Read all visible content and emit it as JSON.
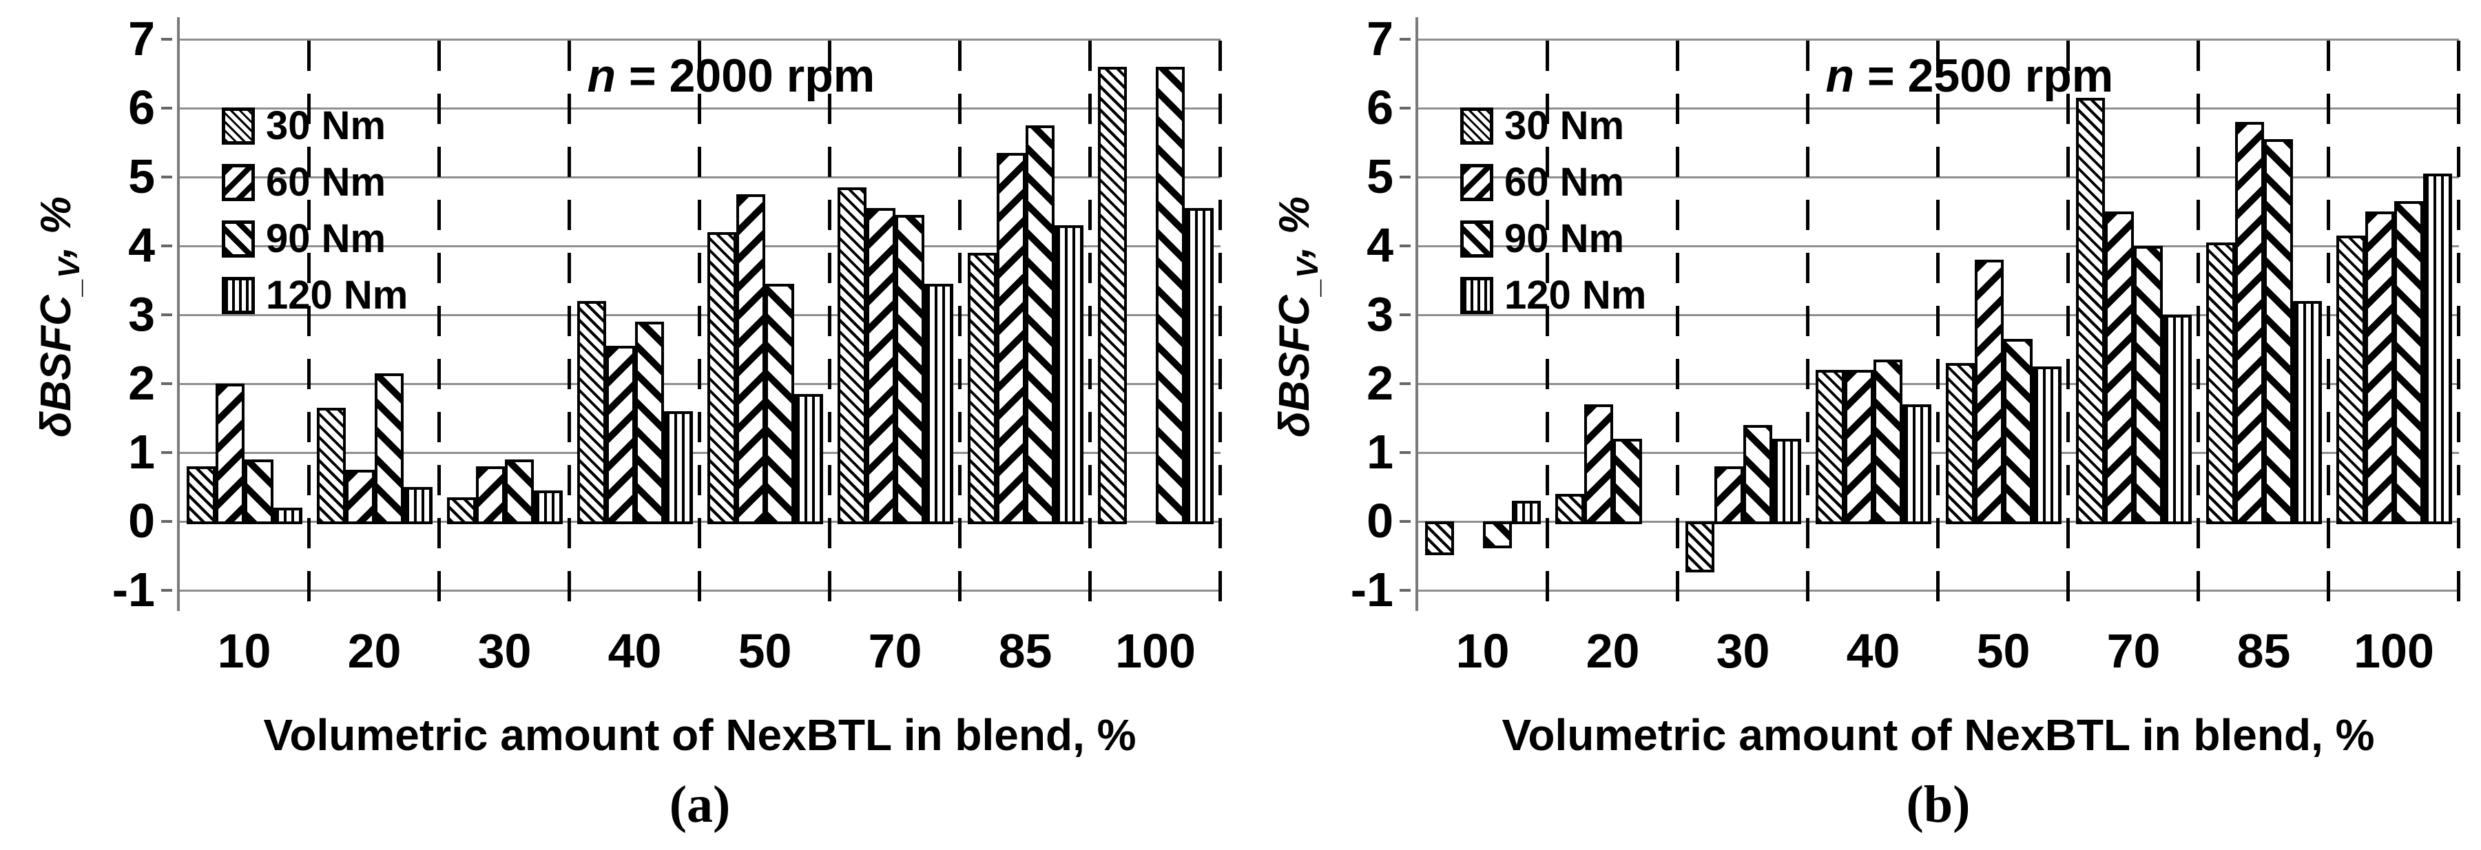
{
  "axes": {
    "x_label": "Volumetric amount of NexBTL in blend, %",
    "y_label_prefix": "δBSFC",
    "y_label_sub": "_V",
    "y_label_suffix": ", %",
    "y_ticks": [
      7,
      6,
      5,
      4,
      3,
      2,
      1,
      0,
      -1
    ],
    "ylim": [
      -1,
      7
    ]
  },
  "colors": {
    "foreground": "#000000",
    "background": "#ffffff",
    "gridline": "#8f8f8f"
  },
  "chart_data": [
    {
      "type": "bar",
      "caption": "(a)",
      "title": "n = 2000 rpm",
      "xlabel": "Volumetric amount of NexBTL in blend, %",
      "ylabel": "δBSFC_V, %",
      "ylim": [
        -1,
        7
      ],
      "grid": "horizontal-solid-and-vertical-dashed",
      "legend_position": "top-left-inside",
      "categories": [
        10,
        20,
        30,
        40,
        50,
        70,
        85,
        100
      ],
      "series": [
        {
          "name": "30 Nm",
          "pattern": "fine-diagonal-hatch",
          "values": [
            0.8,
            1.65,
            0.35,
            3.2,
            4.2,
            4.85,
            3.9,
            6.6
          ]
        },
        {
          "name": "60 Nm",
          "pattern": "wide-diagonal-up",
          "values": [
            2.0,
            0.75,
            0.8,
            2.55,
            4.75,
            4.55,
            5.35,
            null
          ]
        },
        {
          "name": "90 Nm",
          "pattern": "wide-diagonal-down",
          "values": [
            0.9,
            2.15,
            0.9,
            2.9,
            3.45,
            4.45,
            5.75,
            6.6
          ]
        },
        {
          "name": "120 Nm",
          "pattern": "vertical-stripes",
          "values": [
            0.2,
            0.5,
            0.45,
            1.6,
            1.85,
            3.45,
            4.3,
            4.55
          ]
        }
      ]
    },
    {
      "type": "bar",
      "caption": "(b)",
      "title": "n = 2500 rpm",
      "xlabel": "Volumetric amount of NexBTL in blend, %",
      "ylabel": "δBSFC_V, %",
      "ylim": [
        -1,
        7
      ],
      "grid": "horizontal-solid-and-vertical-dashed",
      "legend_position": "top-left-inside",
      "categories": [
        10,
        20,
        30,
        40,
        50,
        70,
        85,
        100
      ],
      "series": [
        {
          "name": "30 Nm",
          "pattern": "fine-diagonal-hatch",
          "values": [
            -0.45,
            0.4,
            -0.7,
            2.2,
            2.3,
            6.15,
            4.05,
            4.15
          ]
        },
        {
          "name": "60 Nm",
          "pattern": "wide-diagonal-up",
          "values": [
            null,
            1.7,
            0.8,
            2.2,
            3.8,
            4.5,
            5.8,
            4.5
          ]
        },
        {
          "name": "90 Nm",
          "pattern": "wide-diagonal-down",
          "values": [
            -0.35,
            1.2,
            1.4,
            2.35,
            2.65,
            4.0,
            5.55,
            4.65
          ]
        },
        {
          "name": "120 Nm",
          "pattern": "vertical-stripes",
          "values": [
            0.3,
            null,
            1.2,
            1.7,
            2.25,
            3.0,
            3.2,
            5.05
          ]
        }
      ]
    }
  ]
}
